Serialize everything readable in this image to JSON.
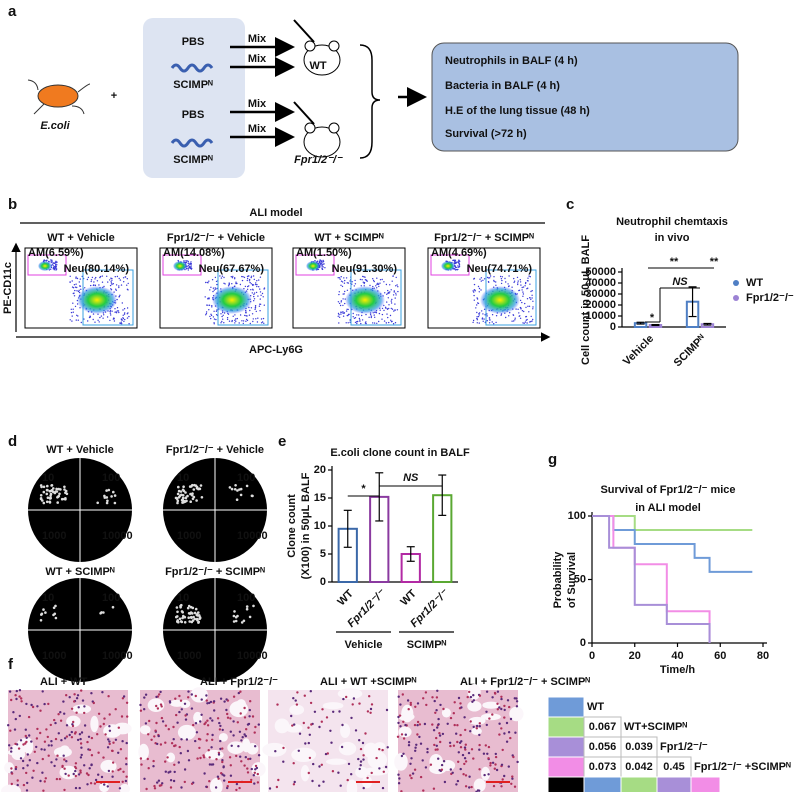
{
  "panel_labels": [
    "a",
    "b",
    "c",
    "d",
    "e",
    "f",
    "g"
  ],
  "schematic": {
    "bacterium": "E.coli",
    "plus": "+",
    "treatments": [
      "PBS",
      "SCIMPᴺ",
      "PBS",
      "SCIMPᴺ"
    ],
    "mix": "Mix",
    "mice": [
      "WT",
      "Fpr1/2⁻/⁻"
    ],
    "outcomes": [
      "Neutrophils in BALF (4 h)",
      "Bacteria in BALF (4 h)",
      "H.E of the lung tissue (48 h)",
      "Survival (>72 h)"
    ]
  },
  "flow": {
    "title": "ALI model",
    "y_label": "PE-CD11c",
    "x_label": "APC-Ly6G",
    "groups": [
      {
        "name": "WT + Vehicle",
        "am": "AM(6.59%)",
        "neu": "Neu(80.14%)"
      },
      {
        "name": "Fpr1/2⁻/⁻ + Vehicle",
        "am": "AM(14.08%)",
        "neu": "Neu(67.67%)"
      },
      {
        "name": "WT + SCIMPᴺ",
        "am": "AM(1.50%)",
        "neu": "Neu(91.30%)"
      },
      {
        "name": "Fpr1/2⁻/⁻ + SCIMPᴺ",
        "am": "AM(4.69%)",
        "neu": "Neu(74.71%)"
      }
    ]
  },
  "plates": {
    "groups": [
      "WT + Vehicle",
      "Fpr1/2⁻/⁻ + Vehicle",
      "WT + SCIMPᴺ",
      "Fpr1/2⁻/⁻ + SCIMPᴺ"
    ],
    "dilutions": [
      "10",
      "100",
      "1000",
      "10000"
    ]
  },
  "histology": {
    "groups": [
      "ALI + WT",
      "ALI + Fpr1/2⁻/⁻",
      "ALI + WT +SCIMPᴺ",
      "ALI + Fpr1/2⁻/⁻ + SCIMPᴺ"
    ]
  },
  "pvalue_table": {
    "labels": [
      "WT",
      "WT+SCIMPᴺ",
      "Fpr1/2⁻/⁻",
      "Fpr1/2⁻/⁻ +SCIMPᴺ"
    ],
    "colors": [
      "#6f9bd8",
      "#a6dc84",
      "#a88fd8",
      "#f28de6"
    ],
    "p_values": [
      [
        "0.067"
      ],
      [
        "0.056",
        "0.039"
      ],
      [
        "0.073",
        "0.042",
        "0.45"
      ]
    ]
  },
  "chart_data": [
    {
      "type": "bar",
      "title": [
        "Neutrophil chemtaxis",
        "in vivo"
      ],
      "y_label": "Cell count in 50 μL BALF",
      "categories": [
        "Vehicle",
        "SCIMPᴺ"
      ],
      "series": [
        {
          "name": "WT",
          "color": "#4f7fc4",
          "values": [
            3500,
            23000
          ],
          "errors": [
            800,
            13500
          ]
        },
        {
          "name": "Fpr1/2⁻/⁻",
          "color": "#9c82d4",
          "values": [
            1800,
            2500
          ],
          "errors": [
            400,
            700
          ]
        }
      ],
      "ylim": [
        0,
        50000
      ],
      "yticks": [
        0,
        10000,
        20000,
        30000,
        40000,
        50000
      ],
      "legend": "right",
      "annotations": [
        "**",
        "*",
        "NS",
        "**"
      ]
    },
    {
      "type": "bar",
      "title": "E.coli clone count in BALF",
      "y_label": [
        "Clone count",
        "(X100) in 50μL BALF"
      ],
      "categories": [
        "WT",
        "Fpr1/2⁻/⁻",
        "WT",
        "Fpr1/2⁻/⁻"
      ],
      "groups": [
        "Vehicle",
        "SCIMPᴺ"
      ],
      "colors": [
        "#3b68a8",
        "#8a3aa0",
        "#b22aa4",
        "#5aa832"
      ],
      "values": [
        9.5,
        15.2,
        5,
        15.5
      ],
      "errors": [
        3.3,
        4.3,
        1.3,
        3.6
      ],
      "ylim": [
        0,
        20
      ],
      "yticks": [
        0,
        5,
        10,
        15,
        20
      ],
      "annotations": [
        "*",
        "NS"
      ]
    },
    {
      "type": "line",
      "step": true,
      "title": [
        "Survival of Fpr1/2⁻/⁻ mice",
        "in ALI model"
      ],
      "x_label": "Time/h",
      "y_label": [
        "Probability",
        "of Survival"
      ],
      "series": [
        {
          "color": "#a6dc84",
          "x": [
            0,
            20,
            75
          ],
          "values": [
            100,
            89,
            89
          ]
        },
        {
          "color": "#6f9bd8",
          "x": [
            0,
            10,
            20,
            48,
            55,
            75
          ],
          "values": [
            100,
            89,
            78,
            67,
            56,
            56
          ]
        },
        {
          "color": "#f28de6",
          "x": [
            0,
            10,
            20,
            35,
            55
          ],
          "values": [
            100,
            75,
            62,
            25,
            0
          ]
        },
        {
          "color": "#a88fd8",
          "x": [
            0,
            8,
            20,
            35,
            55
          ],
          "values": [
            100,
            75,
            30,
            15,
            0
          ]
        }
      ],
      "xlim": [
        0,
        80
      ],
      "xticks": [
        0,
        20,
        40,
        60,
        80
      ],
      "ylim": [
        0,
        100
      ],
      "yticks": [
        0,
        50,
        100
      ]
    }
  ]
}
